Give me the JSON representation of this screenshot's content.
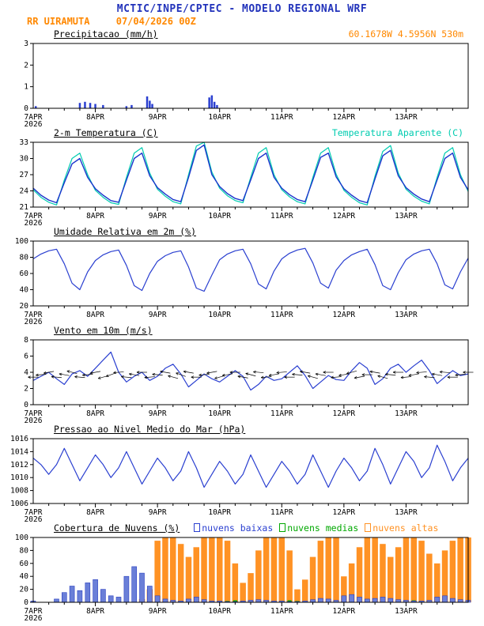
{
  "header": {
    "line1": "MCTIC/INPE/CPTEC - MODELO REGIONAL WRF",
    "station": "RR UIRAMUTA",
    "run": "07/04/2026 00Z",
    "location": "60.1678W 4.5956N 530m"
  },
  "colors": {
    "header_blue": "#2233bb",
    "orange": "#ff8800",
    "line_blue": "#2a3fd0",
    "cyan": "#00ccb0",
    "green": "#00a800",
    "cloud_orange": "#ff9224",
    "black": "#000000"
  },
  "chart_data": [
    {
      "type": "bar",
      "title": "Precipitacao (mm/h)",
      "ylabel": "mm/h",
      "ylim": [
        0,
        3
      ],
      "yticks": [
        0,
        1,
        2,
        3
      ],
      "x": {
        "max": 168,
        "step": 3,
        "minor": 6,
        "major": 24,
        "labels": [
          {
            "t": 0,
            "text": "7APR",
            "sub": "2026"
          },
          {
            "t": 24,
            "text": "8APR"
          },
          {
            "t": 48,
            "text": "9APR"
          },
          {
            "t": 72,
            "text": "10APR"
          },
          {
            "t": 96,
            "text": "11APR"
          },
          {
            "t": 120,
            "text": "12APR"
          },
          {
            "t": 144,
            "text": "13APR"
          }
        ]
      },
      "series": [
        {
          "name": "precipitacao",
          "type": "events",
          "color": "#2a3fd0",
          "w": 2.5,
          "pairs": [
            [
              1,
              0.1
            ],
            [
              18,
              0.25
            ],
            [
              20,
              0.3
            ],
            [
              22,
              0.25
            ],
            [
              24,
              0.2
            ],
            [
              27,
              0.15
            ],
            [
              36,
              0.1
            ],
            [
              38,
              0.15
            ],
            [
              44,
              0.55
            ],
            [
              45,
              0.35
            ],
            [
              46,
              0.2
            ],
            [
              68,
              0.5
            ],
            [
              69,
              0.6
            ],
            [
              70,
              0.3
            ],
            [
              71,
              0.15
            ]
          ]
        }
      ]
    },
    {
      "type": "line",
      "title": "2-m Temperatura (C)",
      "right_label": "Temperatura Aparente (C)",
      "ylim": [
        21,
        33
      ],
      "yticks": [
        21,
        24,
        27,
        30,
        33
      ],
      "x": {
        "max": 168,
        "step": 3,
        "minor": 6,
        "major": 24,
        "labels": [
          {
            "t": 0,
            "text": "7APR",
            "sub": "2026"
          },
          {
            "t": 24,
            "text": "8APR"
          },
          {
            "t": 48,
            "text": "9APR"
          },
          {
            "t": 72,
            "text": "10APR"
          },
          {
            "t": 96,
            "text": "11APR"
          },
          {
            "t": 120,
            "text": "12APR"
          },
          {
            "t": 144,
            "text": "13APR"
          }
        ]
      },
      "series": [
        {
          "name": "Temperatura Aparente (C)",
          "type": "line",
          "color": "#00ccb0",
          "width": 1.2,
          "values": [
            24.2,
            22.8,
            21.9,
            21.4,
            26.0,
            30.0,
            31.0,
            27.0,
            24.1,
            22.8,
            21.8,
            21.5,
            26.5,
            31.0,
            32.0,
            27.3,
            24.3,
            23.0,
            22.0,
            21.6,
            27.0,
            32.3,
            33.0,
            27.5,
            24.5,
            23.1,
            22.2,
            21.8,
            26.5,
            31.0,
            32.0,
            27.0,
            24.2,
            22.9,
            22.0,
            21.6,
            26.5,
            31.0,
            32.0,
            27.1,
            24.1,
            22.8,
            21.8,
            21.4,
            26.7,
            31.3,
            32.4,
            27.3,
            24.3,
            23.0,
            22.1,
            21.6,
            26.5,
            31.0,
            32.0,
            27.0,
            23.9
          ]
        },
        {
          "name": "2-m Temperatura (C)",
          "type": "line",
          "color": "#1a35cc",
          "width": 1.4,
          "values": [
            24.5,
            23.2,
            22.3,
            21.8,
            25.5,
            29.0,
            30.0,
            26.5,
            24.4,
            23.2,
            22.2,
            21.9,
            26.0,
            30.0,
            31.0,
            26.8,
            24.6,
            23.4,
            22.4,
            22.0,
            26.5,
            31.5,
            32.5,
            27.0,
            24.8,
            23.5,
            22.6,
            22.2,
            26.0,
            30.0,
            31.0,
            26.5,
            24.5,
            23.3,
            22.4,
            22.0,
            26.0,
            30.2,
            31.0,
            26.6,
            24.4,
            23.2,
            22.2,
            21.8,
            26.2,
            30.5,
            31.5,
            26.8,
            24.6,
            23.4,
            22.5,
            22.0,
            26.0,
            30.0,
            31.0,
            26.5,
            24.2
          ]
        }
      ]
    },
    {
      "type": "line",
      "title": "Umidade Relativa em 2m (%)",
      "ylim": [
        20,
        100
      ],
      "yticks": [
        20,
        40,
        60,
        80,
        100
      ],
      "x": {
        "max": 168,
        "step": 3,
        "minor": 6,
        "major": 24,
        "labels": [
          {
            "t": 0,
            "text": "7APR",
            "sub": "2026"
          },
          {
            "t": 24,
            "text": "8APR"
          },
          {
            "t": 48,
            "text": "9APR"
          },
          {
            "t": 72,
            "text": "10APR"
          },
          {
            "t": 96,
            "text": "11APR"
          },
          {
            "t": 120,
            "text": "12APR"
          },
          {
            "t": 144,
            "text": "13APR"
          }
        ]
      },
      "series": [
        {
          "name": "umidade relativa",
          "type": "line",
          "color": "#2a3fd0",
          "width": 1.2,
          "values": [
            78,
            84,
            88,
            90,
            72,
            48,
            40,
            62,
            76,
            83,
            87,
            89,
            70,
            45,
            39,
            60,
            75,
            82,
            86,
            88,
            68,
            42,
            38,
            58,
            77,
            84,
            88,
            90,
            72,
            47,
            41,
            63,
            78,
            85,
            89,
            91,
            73,
            48,
            42,
            64,
            76,
            83,
            87,
            90,
            71,
            45,
            40,
            61,
            77,
            84,
            88,
            90,
            72,
            46,
            41,
            62,
            79
          ]
        }
      ]
    },
    {
      "type": "line",
      "title": "Vento em 10m (m/s)",
      "ylim": [
        0,
        8
      ],
      "yticks": [
        0,
        2,
        4,
        6,
        8
      ],
      "x": {
        "max": 168,
        "step": 3,
        "minor": 6,
        "major": 24,
        "labels": [
          {
            "t": 0,
            "text": "7APR",
            "sub": "2026"
          },
          {
            "t": 24,
            "text": "8APR"
          },
          {
            "t": 48,
            "text": "9APR"
          },
          {
            "t": 72,
            "text": "10APR"
          },
          {
            "t": 96,
            "text": "11APR"
          },
          {
            "t": 120,
            "text": "12APR"
          },
          {
            "t": 144,
            "text": "13APR"
          }
        ]
      },
      "series": [
        {
          "name": "velocidade do vento",
          "type": "line",
          "color": "#2a3fd0",
          "width": 1.2,
          "values": [
            3.0,
            3.5,
            4.0,
            3.2,
            2.5,
            3.8,
            4.2,
            3.5,
            4.5,
            5.5,
            6.5,
            4.0,
            2.8,
            3.5,
            4.0,
            3.0,
            3.5,
            4.5,
            5.0,
            3.8,
            2.2,
            3.0,
            3.8,
            3.2,
            2.8,
            3.5,
            4.2,
            3.5,
            1.8,
            2.5,
            3.5,
            3.0,
            3.2,
            4.0,
            4.8,
            3.6,
            2.0,
            2.8,
            3.6,
            3.1,
            3.0,
            4.2,
            5.2,
            4.5,
            2.5,
            3.2,
            4.5,
            5.0,
            4.0,
            4.8,
            5.5,
            4.2,
            2.6,
            3.4,
            4.2,
            3.6,
            3.8
          ]
        },
        {
          "name": "direcao do vento (setas)",
          "type": "arrows",
          "color": "#000000",
          "base": 3.7,
          "len": 13,
          "dirs": [
            90,
            85,
            80,
            95,
            100,
            105,
            95,
            85,
            80,
            75,
            70,
            85,
            95,
            100,
            90,
            85,
            95,
            100,
            105,
            110,
            100,
            90,
            85,
            80,
            75,
            80,
            90,
            100,
            105,
            95,
            85,
            80,
            85,
            90,
            95,
            100,
            105,
            100,
            90,
            85,
            80,
            75,
            80,
            90,
            100,
            105,
            95,
            90,
            85,
            80,
            85,
            95,
            100,
            95,
            90,
            85,
            90
          ]
        }
      ]
    },
    {
      "type": "line",
      "title": "Pressao ao Nivel Medio do Mar (hPa)",
      "ylim": [
        1006,
        1016
      ],
      "yticks": [
        1006,
        1008,
        1010,
        1012,
        1014,
        1016
      ],
      "x": {
        "max": 168,
        "step": 3,
        "minor": 6,
        "major": 24,
        "labels": [
          {
            "t": 0,
            "text": "7APR",
            "sub": "2026"
          },
          {
            "t": 24,
            "text": "8APR"
          },
          {
            "t": 48,
            "text": "9APR"
          },
          {
            "t": 72,
            "text": "10APR"
          },
          {
            "t": 96,
            "text": "11APR"
          },
          {
            "t": 120,
            "text": "12APR"
          },
          {
            "t": 144,
            "text": "13APR"
          }
        ]
      },
      "series": [
        {
          "name": "pressao ao nivel medio do mar",
          "type": "line",
          "color": "#2a3fd0",
          "width": 1.2,
          "values": [
            1013.0,
            1012.0,
            1010.5,
            1012.0,
            1014.5,
            1012.0,
            1009.5,
            1011.5,
            1013.5,
            1012.0,
            1010.0,
            1011.5,
            1014.0,
            1011.5,
            1009.0,
            1011.0,
            1013.0,
            1011.5,
            1009.5,
            1011.0,
            1014.0,
            1011.5,
            1008.5,
            1010.5,
            1012.5,
            1011.0,
            1009.0,
            1010.5,
            1013.5,
            1011.0,
            1008.5,
            1010.5,
            1012.5,
            1011.0,
            1009.0,
            1010.5,
            1013.5,
            1011.0,
            1008.5,
            1011.0,
            1013.0,
            1011.5,
            1009.5,
            1011.0,
            1014.5,
            1012.0,
            1009.0,
            1011.5,
            1014.0,
            1012.5,
            1010.0,
            1011.5,
            1015.0,
            1012.5,
            1009.5,
            1011.5,
            1013.0
          ]
        }
      ]
    },
    {
      "type": "bar",
      "title": "Cobertura de Nuvens (%)",
      "legend": [
        {
          "label": "nuvens baixas",
          "color_key": "line_blue"
        },
        {
          "label": "nuvens medias",
          "color_key": "green"
        },
        {
          "label": "nuvens altas",
          "color_key": "cloud_orange"
        }
      ],
      "ylim": [
        0,
        100
      ],
      "yticks": [
        0,
        20,
        40,
        60,
        80,
        100
      ],
      "x": {
        "max": 168,
        "step": 3,
        "minor": 6,
        "major": 24,
        "labels": [
          {
            "t": 0,
            "text": "7APR",
            "sub": "2026"
          },
          {
            "t": 24,
            "text": "8APR"
          },
          {
            "t": 48,
            "text": "9APR"
          },
          {
            "t": 72,
            "text": "10APR"
          },
          {
            "t": 96,
            "text": "11APR"
          },
          {
            "t": 120,
            "text": "12APR"
          },
          {
            "t": 144,
            "text": "13APR"
          }
        ]
      },
      "series": [
        {
          "name": "nuvens altas",
          "type": "bars",
          "color": "#ff9224",
          "w": 7.5,
          "values": [
            0,
            0,
            0,
            0,
            0,
            0,
            0,
            0,
            0,
            0,
            0,
            0,
            0,
            0,
            5,
            20,
            95,
            100,
            100,
            90,
            70,
            85,
            100,
            100,
            100,
            95,
            60,
            30,
            45,
            80,
            100,
            100,
            100,
            80,
            20,
            35,
            70,
            95,
            100,
            100,
            40,
            60,
            85,
            100,
            100,
            90,
            70,
            85,
            100,
            100,
            95,
            75,
            60,
            80,
            95,
            100,
            100
          ]
        },
        {
          "name": "nuvens medias",
          "type": "bars",
          "color": "#00a800",
          "w": 5,
          "values": [
            0,
            0,
            0,
            0,
            0,
            0,
            0,
            0,
            0,
            0,
            0,
            0,
            2,
            3,
            2,
            0,
            2,
            4,
            3,
            2,
            0,
            2,
            3,
            2,
            0,
            2,
            3,
            2,
            2,
            3,
            2,
            0,
            2,
            3,
            2,
            0,
            2,
            3,
            2,
            2,
            3,
            2,
            2,
            3,
            2,
            2,
            3,
            2,
            2,
            3,
            2,
            2,
            3,
            2,
            2,
            3,
            2
          ]
        },
        {
          "name": "nuvens baixas",
          "type": "bars",
          "color": "#6a7fd8",
          "stroke": "#2a3fc0",
          "w": 6,
          "values": [
            2,
            0,
            0,
            5,
            15,
            25,
            18,
            30,
            35,
            20,
            10,
            8,
            40,
            55,
            45,
            25,
            10,
            5,
            3,
            2,
            5,
            8,
            4,
            2,
            2,
            1,
            1,
            2,
            3,
            4,
            3,
            2,
            2,
            1,
            1,
            2,
            4,
            6,
            5,
            3,
            10,
            12,
            8,
            5,
            6,
            8,
            6,
            4,
            3,
            2,
            2,
            3,
            8,
            10,
            6,
            4,
            3
          ]
        }
      ]
    }
  ]
}
